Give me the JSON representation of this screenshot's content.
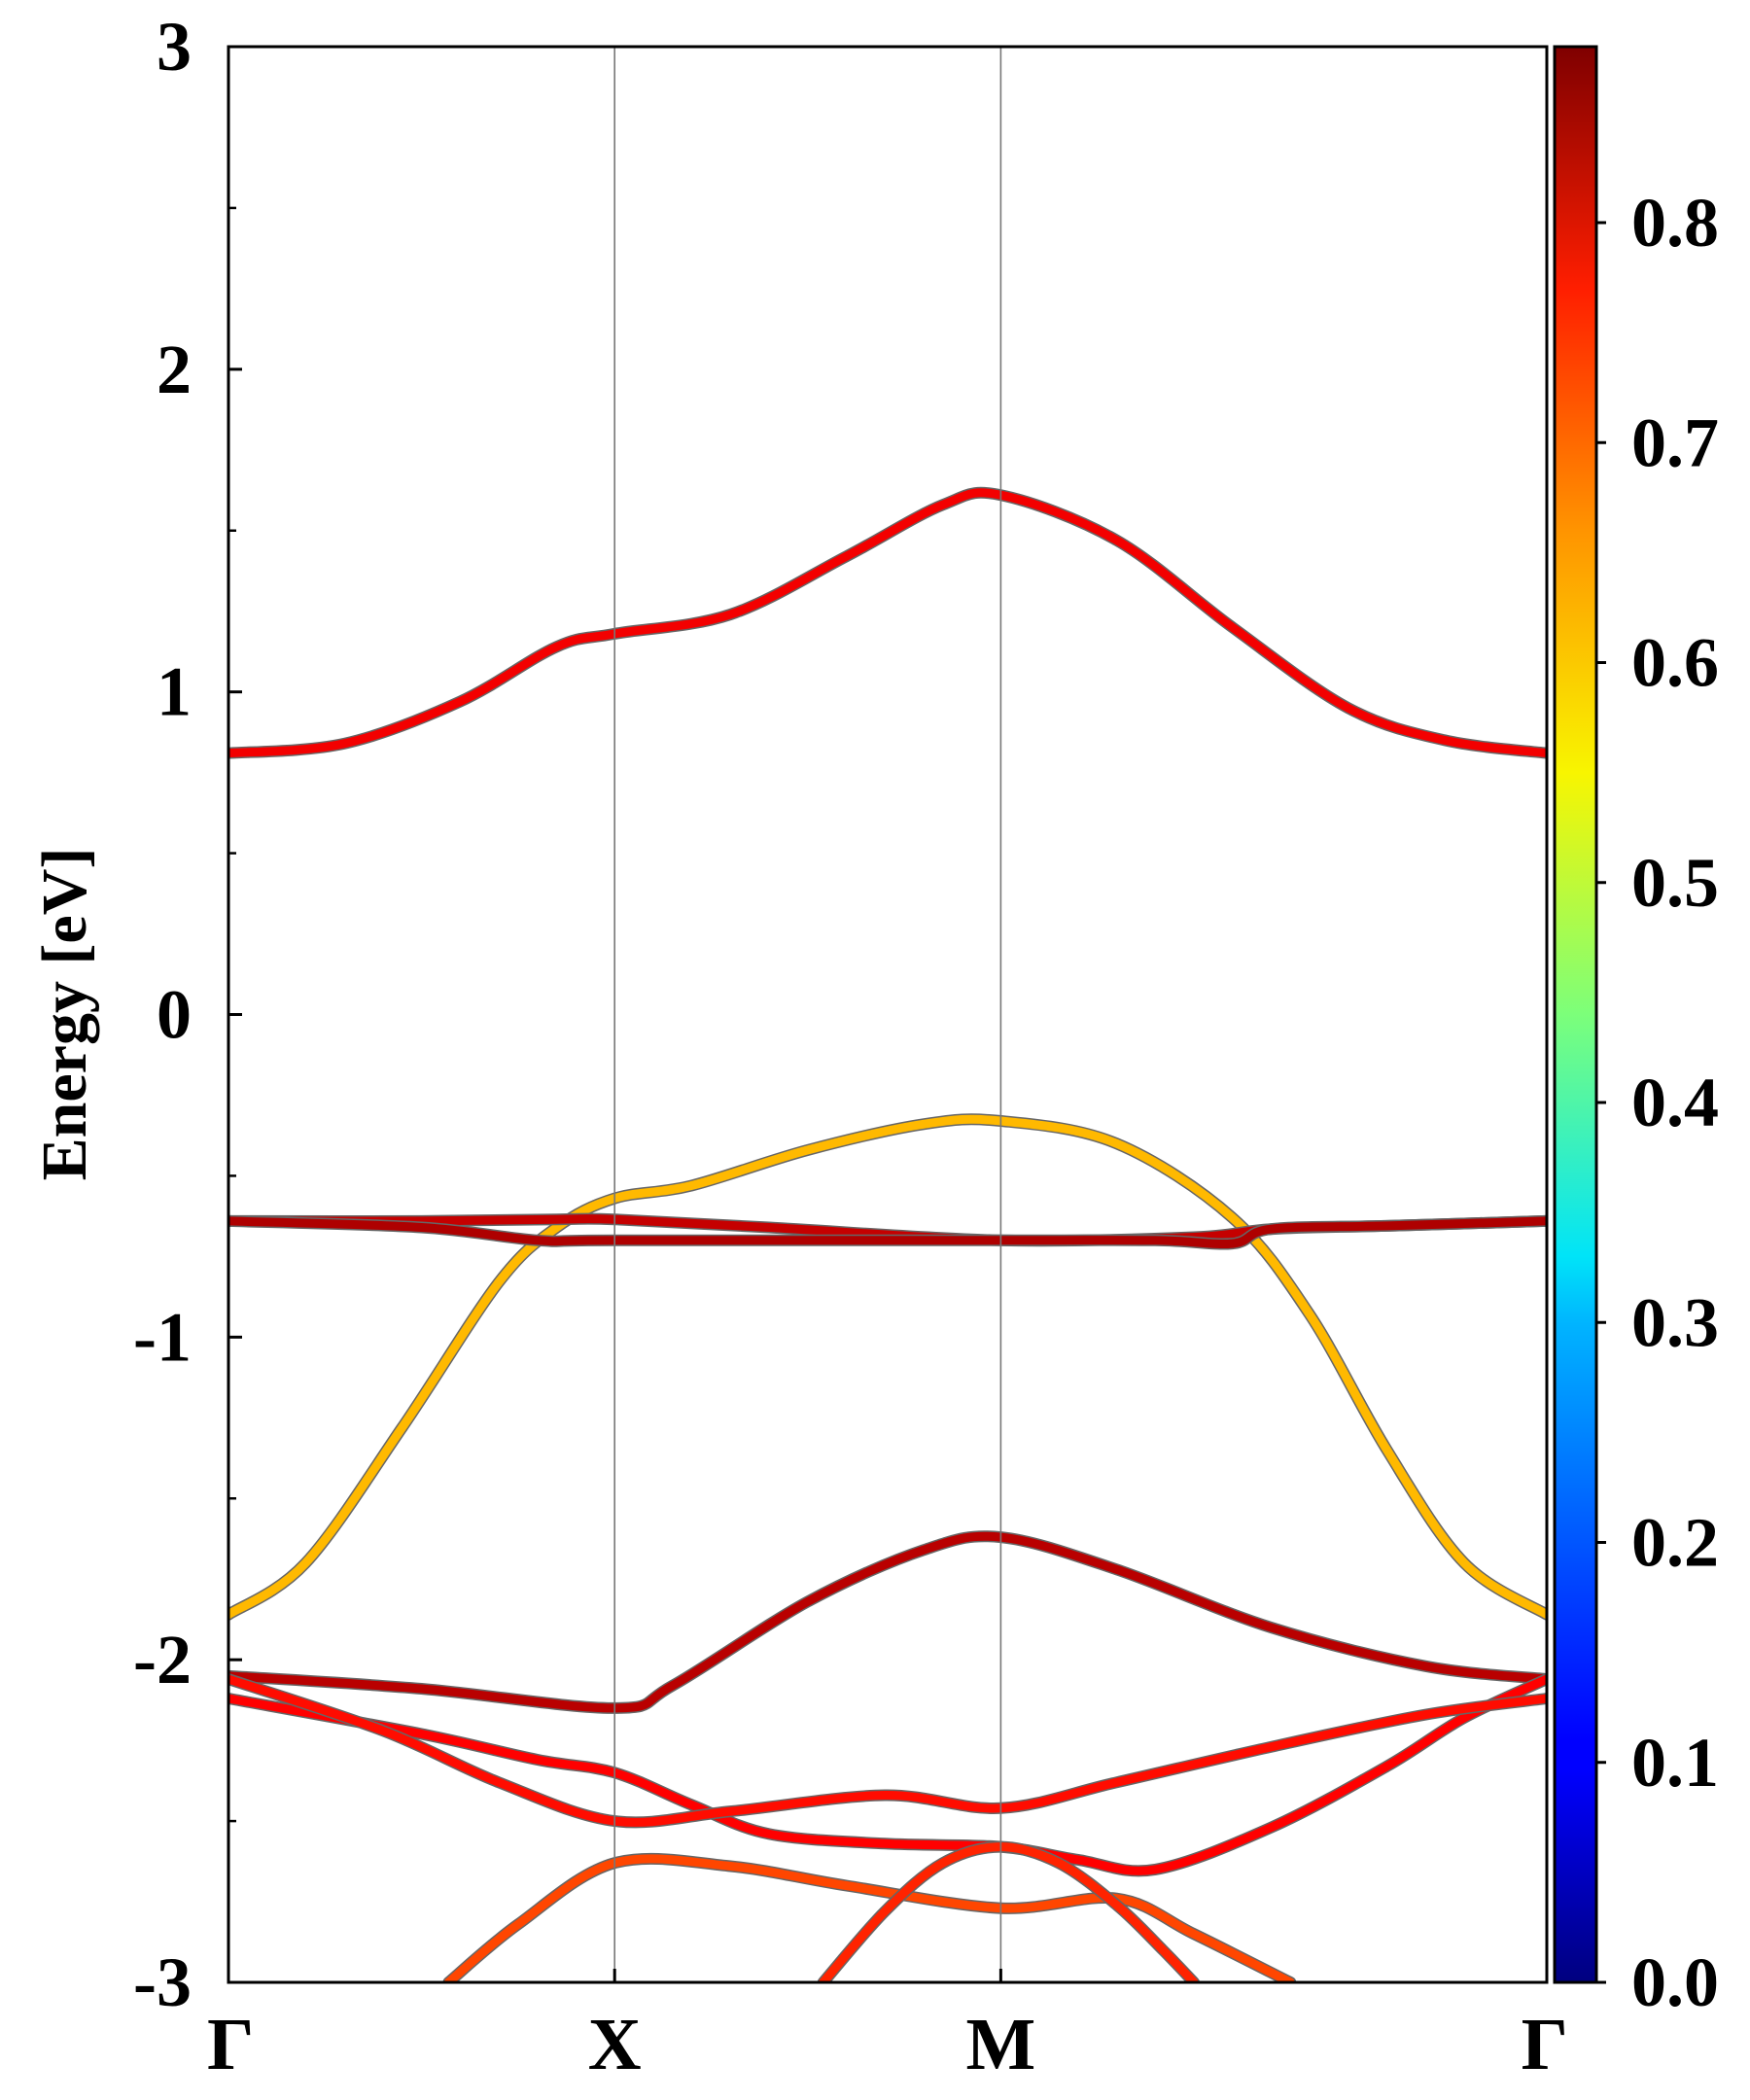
{
  "chart_data": {
    "type": "line",
    "title": "",
    "xlabel": "",
    "ylabel": "Energy [eV]",
    "ylim": [
      -3,
      3
    ],
    "y_ticks": [
      -3,
      -2,
      -1,
      0,
      1,
      2,
      3
    ],
    "y_tick_labels": [
      "-3",
      "-2",
      "-1",
      "0",
      "1",
      "2",
      "3"
    ],
    "k_path": [
      {
        "label": "Γ",
        "pos": 0.0
      },
      {
        "label": "X",
        "pos": 1.0
      },
      {
        "label": "M",
        "pos": 2.0
      },
      {
        "label": "Γ",
        "pos": 3.414
      }
    ],
    "colorbar": {
      "colormap": "jet",
      "range": [
        0.0,
        0.88
      ],
      "ticks": [
        0.0,
        0.1,
        0.2,
        0.3,
        0.4,
        0.5,
        0.6,
        0.7,
        0.8
      ],
      "tick_labels": [
        "0.0",
        "0.1",
        "0.2",
        "0.3",
        "0.4",
        "0.5",
        "0.6",
        "0.7",
        "0.8"
      ]
    },
    "series": [
      {
        "weight": 0.78,
        "points": [
          [
            0,
            0.81
          ],
          [
            0.3,
            0.84
          ],
          [
            0.6,
            0.97
          ],
          [
            0.85,
            1.14
          ],
          [
            1.0,
            1.18
          ],
          [
            1.3,
            1.24
          ],
          [
            1.6,
            1.42
          ],
          [
            1.85,
            1.58
          ],
          [
            2.0,
            1.61
          ],
          [
            2.3,
            1.47
          ],
          [
            2.6,
            1.2
          ],
          [
            2.9,
            0.95
          ],
          [
            3.15,
            0.85
          ],
          [
            3.414,
            0.81
          ]
        ]
      },
      {
        "weight": 0.61,
        "points": [
          [
            0,
            -1.86
          ],
          [
            0.2,
            -1.7
          ],
          [
            0.45,
            -1.28
          ],
          [
            0.7,
            -0.83
          ],
          [
            0.85,
            -0.66
          ],
          [
            1.0,
            -0.57
          ],
          [
            1.2,
            -0.53
          ],
          [
            1.5,
            -0.42
          ],
          [
            1.8,
            -0.34
          ],
          [
            2.0,
            -0.33
          ],
          [
            2.3,
            -0.4
          ],
          [
            2.6,
            -0.63
          ],
          [
            2.8,
            -0.93
          ],
          [
            3.0,
            -1.35
          ],
          [
            3.2,
            -1.7
          ],
          [
            3.414,
            -1.86
          ]
        ]
      },
      {
        "weight": 0.82,
        "points": [
          [
            0,
            -0.64
          ],
          [
            0.5,
            -0.64
          ],
          [
            0.85,
            -0.635
          ],
          [
            1.0,
            -0.635
          ],
          [
            1.4,
            -0.66
          ],
          [
            2.0,
            -0.7
          ],
          [
            2.5,
            -0.69
          ],
          [
            2.7,
            -0.665
          ],
          [
            3.0,
            -0.655
          ],
          [
            3.414,
            -0.64
          ]
        ]
      },
      {
        "weight": 0.84,
        "points": [
          [
            0,
            -0.64
          ],
          [
            0.5,
            -0.66
          ],
          [
            0.8,
            -0.7
          ],
          [
            1.0,
            -0.7
          ],
          [
            2.0,
            -0.7
          ],
          [
            2.4,
            -0.7
          ],
          [
            2.6,
            -0.71
          ],
          [
            2.7,
            -0.665
          ],
          [
            3.0,
            -0.655
          ],
          [
            3.414,
            -0.64
          ]
        ]
      },
      {
        "weight": 0.83,
        "points": [
          [
            0,
            -2.05
          ],
          [
            0.5,
            -2.09
          ],
          [
            1.0,
            -2.15
          ],
          [
            1.15,
            -2.08
          ],
          [
            1.5,
            -1.82
          ],
          [
            1.8,
            -1.66
          ],
          [
            2.0,
            -1.62
          ],
          [
            2.3,
            -1.72
          ],
          [
            2.7,
            -1.9
          ],
          [
            3.1,
            -2.02
          ],
          [
            3.414,
            -2.06
          ]
        ]
      },
      {
        "weight": 0.77,
        "points": [
          [
            0,
            -2.12
          ],
          [
            0.5,
            -2.23
          ],
          [
            0.8,
            -2.31
          ],
          [
            1.0,
            -2.35
          ],
          [
            1.2,
            -2.45
          ],
          [
            1.4,
            -2.54
          ],
          [
            1.7,
            -2.57
          ],
          [
            2.0,
            -2.58
          ],
          [
            2.2,
            -2.62
          ],
          [
            2.4,
            -2.65
          ],
          [
            2.7,
            -2.52
          ],
          [
            3.0,
            -2.33
          ],
          [
            3.2,
            -2.18
          ],
          [
            3.414,
            -2.06
          ]
        ]
      },
      {
        "weight": 0.76,
        "points": [
          [
            0,
            -2.06
          ],
          [
            0.4,
            -2.22
          ],
          [
            0.7,
            -2.38
          ],
          [
            1.0,
            -2.5
          ],
          [
            1.3,
            -2.47
          ],
          [
            1.7,
            -2.42
          ],
          [
            2.0,
            -2.46
          ],
          [
            2.3,
            -2.38
          ],
          [
            2.7,
            -2.27
          ],
          [
            3.1,
            -2.17
          ],
          [
            3.414,
            -2.12
          ]
        ]
      },
      {
        "weight": 0.71,
        "points": [
          [
            0.57,
            -3.0
          ],
          [
            0.75,
            -2.82
          ],
          [
            1.0,
            -2.63
          ],
          [
            1.3,
            -2.64
          ],
          [
            1.6,
            -2.7
          ],
          [
            2.0,
            -2.77
          ],
          [
            2.3,
            -2.74
          ],
          [
            2.5,
            -2.85
          ],
          [
            2.75,
            -3.0
          ]
        ]
      },
      {
        "weight": 0.74,
        "points": [
          [
            1.54,
            -3.0
          ],
          [
            1.7,
            -2.78
          ],
          [
            1.85,
            -2.63
          ],
          [
            2.0,
            -2.58
          ],
          [
            2.15,
            -2.63
          ],
          [
            2.3,
            -2.76
          ],
          [
            2.42,
            -2.9
          ],
          [
            2.5,
            -3.0
          ]
        ]
      }
    ]
  }
}
